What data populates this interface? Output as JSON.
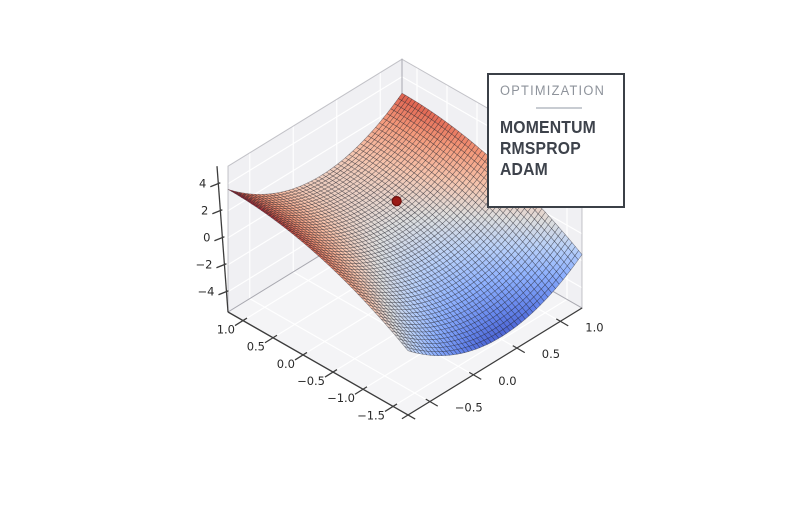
{
  "chart_data": {
    "type": "surface3d",
    "title": "",
    "surface": {
      "formula": "z = 2.8*(y-0.42)^2 - 0.48*(x-1.25)^2 + 0.55*(y-0.25) + 0.3",
      "p": 2.8,
      "y0": 0.42,
      "q": 0.48,
      "x0": 1.25,
      "lin": 0.55,
      "y1": 0.25,
      "c": 0.3,
      "x_domain": [
        -1.75,
        1.25
      ],
      "y_domain": [
        -0.75,
        1.25
      ],
      "mesh_nx": 54,
      "mesh_ny": 46
    },
    "axes": {
      "x": {
        "ticks": [
          1.0,
          0.5,
          0.0,
          -0.5,
          -1.0,
          -1.5
        ],
        "decimals": 1,
        "range": [
          -1.75,
          1.25
        ]
      },
      "y": {
        "ticks": [
          -0.5,
          0.0,
          0.5,
          1.0
        ],
        "decimals": 1,
        "range": [
          -0.75,
          1.25
        ]
      },
      "z": {
        "ticks": [
          4,
          2,
          0,
          -2,
          -4
        ],
        "decimals": 0,
        "range": [
          -5.5,
          5.3
        ]
      }
    },
    "marker": {
      "x": 0.28,
      "y": 0.52,
      "radius": 4.5,
      "color": "#9b1b16",
      "edge_color": "#6f100d"
    },
    "colormap": {
      "name": "coolwarm",
      "norm": [
        -4.4,
        3.8
      ],
      "stops": [
        [
          59,
          76,
          192
        ],
        [
          98,
          130,
          234
        ],
        [
          141,
          176,
          254
        ],
        [
          184,
          208,
          249
        ],
        [
          221,
          221,
          221
        ],
        [
          245,
          196,
          173
        ],
        [
          244,
          154,
          123
        ],
        [
          222,
          96,
          77
        ],
        [
          180,
          4,
          38
        ]
      ]
    },
    "wireframe": true,
    "grid": true,
    "legend_position": "top-right"
  },
  "legend": {
    "title": "OPTIMIZATION",
    "items": [
      "MOMENTUM",
      "RMSPROP",
      "ADAM"
    ]
  },
  "colors": {
    "legend_border": "#3b4047",
    "legend_title": "#8e939b",
    "legend_item": "#3d424b",
    "marker": "#9b1b16",
    "surface_low": "#3b4cc0",
    "surface_high": "#b40426"
  }
}
